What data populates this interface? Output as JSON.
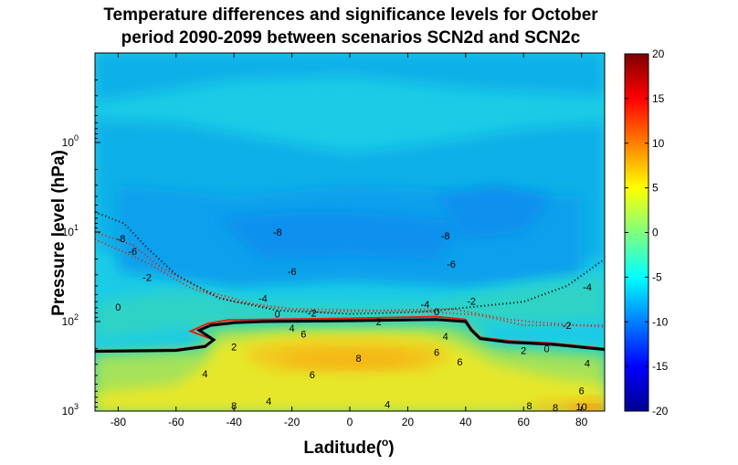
{
  "chart_data": {
    "type": "heatmap",
    "title_lines": [
      "Temperature differences and significance levels for October",
      "period 2090-2099  between scenarios SCN2d and SCN2c"
    ],
    "xlabel_base": "Laditude(",
    "xlabel_sup": "o",
    "xlabel_end": ")",
    "ylabel": "Pressure level (hPa)",
    "xlim": [
      -88,
      88
    ],
    "xticks": [
      -80,
      -60,
      -40,
      -20,
      0,
      20,
      40,
      60,
      80
    ],
    "y_scale": "log",
    "y_reversed": true,
    "ylim": [
      0.1,
      1000
    ],
    "yticks": [
      {
        "value": 1,
        "base": "10",
        "exp": "0"
      },
      {
        "value": 10,
        "base": "10",
        "exp": "1"
      },
      {
        "value": 100,
        "base": "10",
        "exp": "2"
      },
      {
        "value": 1000,
        "base": "10",
        "exp": "3"
      }
    ],
    "colorbar": {
      "range": [
        -20,
        20
      ],
      "ticks": [
        20,
        15,
        10,
        5,
        0,
        -5,
        -10,
        -15,
        -20
      ],
      "colormap": "jet"
    },
    "colors": {
      "bright_cyan": "#1ccbe6",
      "cyan_blue": "#0fb0e8",
      "blue_light": "#0aa0ec",
      "blue": "#0790ee",
      "green_cyan": "#2ed3c6",
      "green": "#58d88a",
      "lime": "#a6e25a",
      "yellow": "#e6e72c",
      "yellow_orange": "#f2c81a",
      "orange": "#f5b614",
      "red_orange": "#f07a14",
      "contour_black": "#000000",
      "contour_red": "#e51d12"
    },
    "contour_labels": [
      {
        "text": "-8",
        "lat": -79,
        "p": 13
      },
      {
        "text": "-6",
        "lat": -75,
        "p": 18
      },
      {
        "text": "-2",
        "lat": -70,
        "p": 35
      },
      {
        "text": "0",
        "lat": -80,
        "p": 75
      },
      {
        "text": "-8",
        "lat": -25,
        "p": 11
      },
      {
        "text": "-6",
        "lat": -20,
        "p": 30
      },
      {
        "text": "-4",
        "lat": -30,
        "p": 60
      },
      {
        "text": "-2",
        "lat": -13,
        "p": 88
      },
      {
        "text": "0",
        "lat": -25,
        "p": 90
      },
      {
        "text": "4",
        "lat": -20,
        "p": 130
      },
      {
        "text": "6",
        "lat": -16,
        "p": 150
      },
      {
        "text": "2",
        "lat": -40,
        "p": 210
      },
      {
        "text": "2",
        "lat": 10,
        "p": 110
      },
      {
        "text": "8",
        "lat": 3,
        "p": 280
      },
      {
        "text": "6",
        "lat": -13,
        "p": 430
      },
      {
        "text": "4",
        "lat": -50,
        "p": 420
      },
      {
        "text": "4",
        "lat": -28,
        "p": 850
      },
      {
        "text": "8",
        "lat": -40,
        "p": 950
      },
      {
        "text": "-8",
        "lat": 33,
        "p": 12
      },
      {
        "text": "-6",
        "lat": 35,
        "p": 25
      },
      {
        "text": "-4",
        "lat": 26,
        "p": 70
      },
      {
        "text": "-2",
        "lat": 42,
        "p": 65
      },
      {
        "text": "0",
        "lat": 30,
        "p": 85
      },
      {
        "text": "4",
        "lat": 33,
        "p": 160
      },
      {
        "text": "6",
        "lat": 30,
        "p": 240
      },
      {
        "text": "6",
        "lat": 38,
        "p": 310
      },
      {
        "text": "4",
        "lat": 13,
        "p": 920
      },
      {
        "text": "2",
        "lat": 60,
        "p": 230
      },
      {
        "text": "0",
        "lat": 68,
        "p": 220
      },
      {
        "text": "-2",
        "lat": 75,
        "p": 120
      },
      {
        "text": "-4",
        "lat": 82,
        "p": 45
      },
      {
        "text": "4",
        "lat": 82,
        "p": 320
      },
      {
        "text": "6",
        "lat": 80,
        "p": 650
      },
      {
        "text": "8",
        "lat": 62,
        "p": 950
      },
      {
        "text": "8",
        "lat": 71,
        "p": 1000
      },
      {
        "text": "10",
        "lat": 80,
        "p": 980
      }
    ]
  }
}
